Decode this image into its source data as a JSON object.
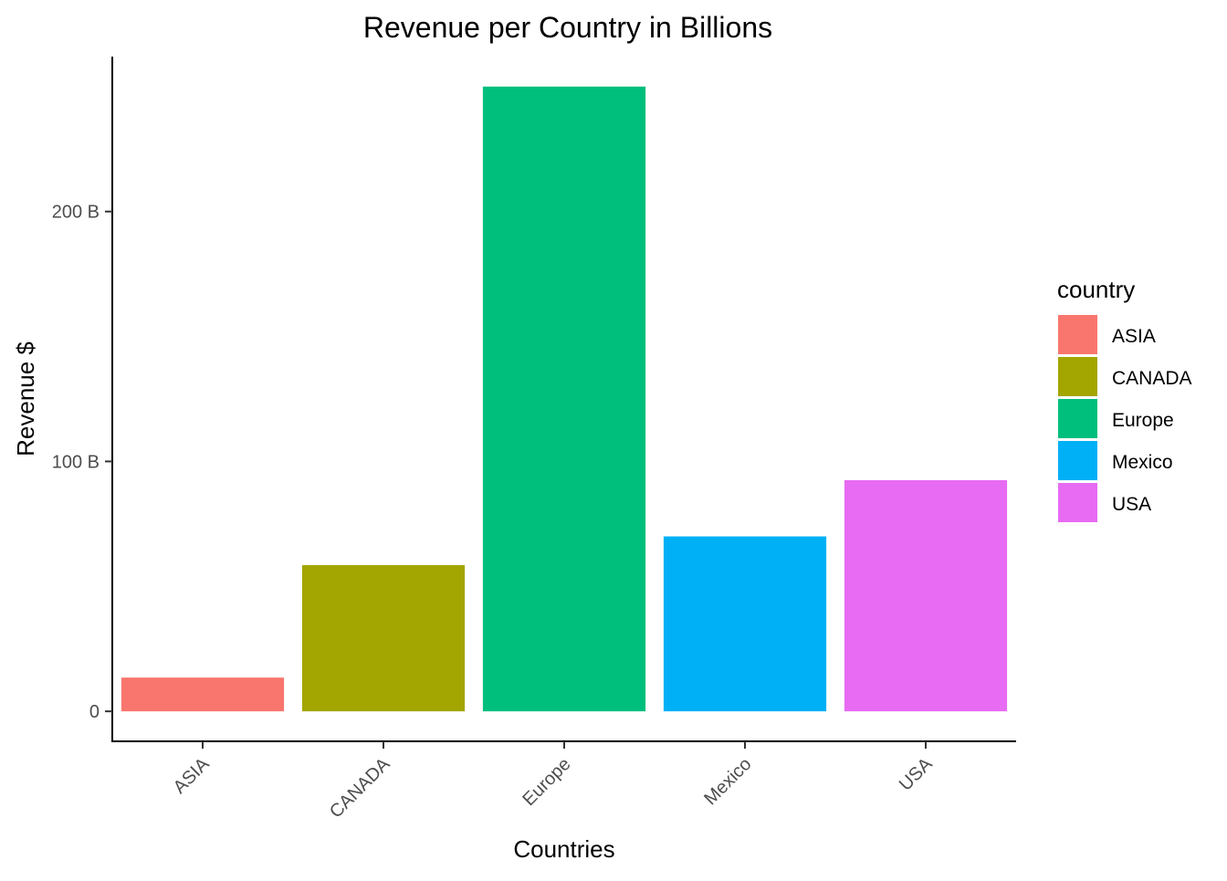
{
  "chart_data": {
    "type": "bar",
    "title": "Revenue per Country in Billions",
    "xlabel": "Countries",
    "ylabel": "Revenue $",
    "categories": [
      "ASIA",
      "CANADA",
      "Europe",
      "Mexico",
      "USA"
    ],
    "values": [
      13.5,
      58.5,
      250,
      70,
      92.5
    ],
    "colors": [
      "#F8766D",
      "#A3A500",
      "#00BF7D",
      "#00B0F6",
      "#E76BF3"
    ],
    "ylim": [
      -12,
      262
    ],
    "yticks": [
      0,
      100,
      200
    ],
    "ytick_labels": [
      "0",
      "100 B",
      "200 B"
    ],
    "grid": false,
    "legend": {
      "title": "country",
      "placement": "right",
      "entries": [
        "ASIA",
        "CANADA",
        "Europe",
        "Mexico",
        "USA"
      ]
    }
  }
}
